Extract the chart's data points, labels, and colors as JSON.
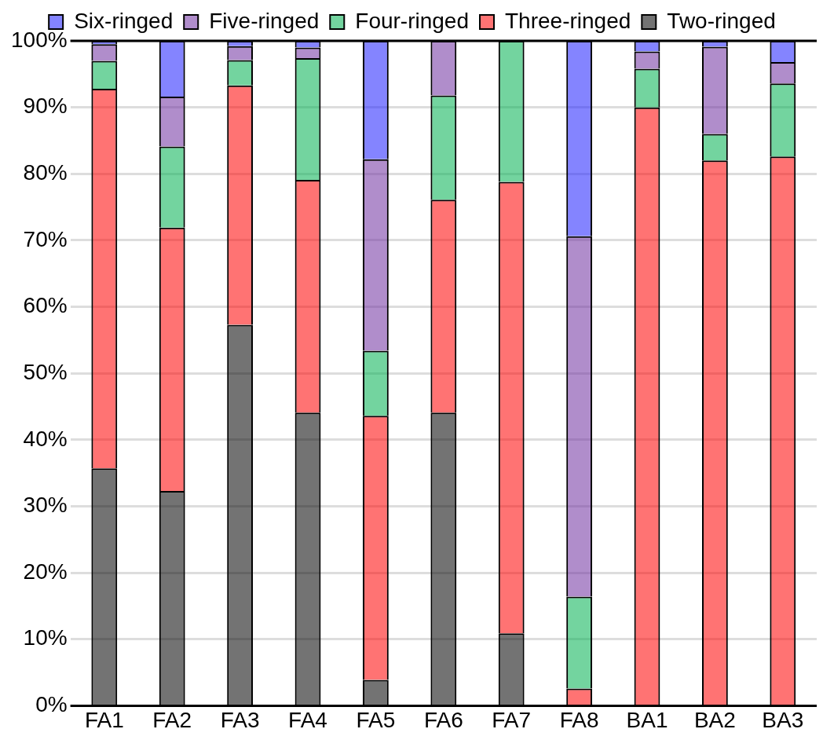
{
  "chart_data": {
    "type": "bar",
    "stacked": true,
    "categories": [
      "FA1",
      "FA2",
      "FA3",
      "FA4",
      "FA5",
      "FA6",
      "FA7",
      "FA8",
      "BA1",
      "BA2",
      "BA3"
    ],
    "series": [
      {
        "name": "Two-ringed",
        "color": "#000000",
        "values": [
          35.7,
          32.3,
          57.3,
          44.1,
          3.9,
          44.1,
          10.9,
          0,
          0,
          0,
          0
        ]
      },
      {
        "name": "Three-ringed",
        "color": "#ff0000",
        "values": [
          57.1,
          39.6,
          36.0,
          35.0,
          39.7,
          32.0,
          67.9,
          2.6,
          90.0,
          82.0,
          82.6
        ]
      },
      {
        "name": "Four-ringed",
        "color": "#00b050",
        "values": [
          4.2,
          12.2,
          3.8,
          18.3,
          9.8,
          15.7,
          21.2,
          13.8,
          5.8,
          4.0,
          11.0
        ]
      },
      {
        "name": "Five-ringed",
        "color": "#7030a0",
        "values": [
          2.5,
          7.5,
          2.1,
          1.6,
          28.8,
          8.2,
          0,
          54.2,
          2.6,
          13.1,
          3.2
        ]
      },
      {
        "name": "Six-ringed",
        "color": "#1f1fff",
        "values": [
          0.5,
          8.4,
          0.8,
          1.0,
          17.8,
          0,
          0,
          29.4,
          1.6,
          0.9,
          3.2
        ]
      }
    ],
    "ylim": [
      0,
      100
    ],
    "yticks": [
      {
        "value": 0,
        "label": "0%"
      },
      {
        "value": 10,
        "label": "10%"
      },
      {
        "value": 20,
        "label": "20%"
      },
      {
        "value": 30,
        "label": "30%"
      },
      {
        "value": 40,
        "label": "40%"
      },
      {
        "value": 50,
        "label": "50%"
      },
      {
        "value": 60,
        "label": "60%"
      },
      {
        "value": 70,
        "label": "70%"
      },
      {
        "value": 80,
        "label": "80%"
      },
      {
        "value": 90,
        "label": "90%"
      },
      {
        "value": 100,
        "label": "100%"
      }
    ],
    "grid": "y",
    "legend": "top"
  }
}
